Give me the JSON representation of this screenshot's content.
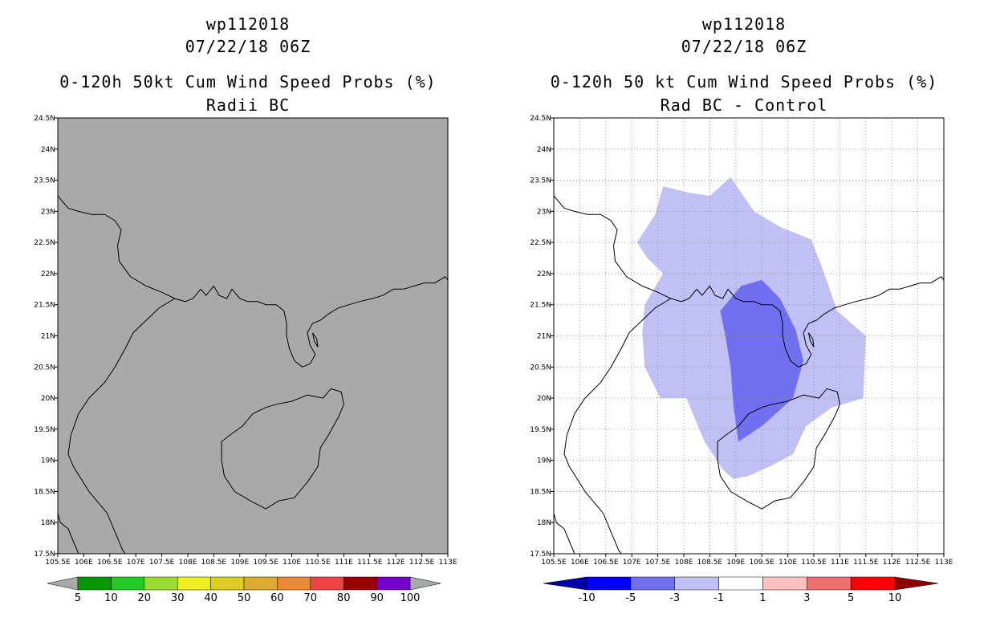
{
  "map_extent": {
    "lon_min": 105.5,
    "lon_max": 113.0,
    "lat_min": 17.5,
    "lat_max": 24.5
  },
  "lat_labels": [
    "24.5N",
    "24N",
    "23.5N",
    "23N",
    "22.5N",
    "22N",
    "21.5N",
    "21N",
    "20.5N",
    "20N",
    "19.5N",
    "19N",
    "18.5N",
    "18N",
    "17.5N"
  ],
  "lon_labels": [
    "105.5E",
    "106E",
    "106.5E",
    "107E",
    "107.5E",
    "108E",
    "108.5E",
    "109E",
    "109.5E",
    "110E",
    "110.5E",
    "111E",
    "111.5E",
    "112E",
    "112.5E",
    "113E"
  ],
  "left_panel": {
    "title_line1": "wp112018",
    "title_line2": "07/22/18 06Z",
    "title_line3": "0-120h 50kt Cum Wind Speed Probs (%)",
    "title_line4": "Radii BC",
    "background_fill": "#a9a9a9",
    "colorbar": {
      "colors": [
        "#009900",
        "#22cc22",
        "#99dd33",
        "#eeee22",
        "#ddcc22",
        "#ddaa33",
        "#ee8833",
        "#ee4444",
        "#990000",
        "#7700cc"
      ],
      "end_colors": [
        "#a9a9a9",
        "#a9a9a9"
      ],
      "labels": [
        "5",
        "10",
        "20",
        "30",
        "40",
        "50",
        "60",
        "70",
        "80",
        "90",
        "100"
      ]
    }
  },
  "right_panel": {
    "title_line1": "wp112018",
    "title_line2": "07/22/18 06Z",
    "title_line3": "0-120h 50 kt Cum Wind Speed Probs (%)",
    "title_line4": "Rad BC - Control",
    "grid": "dotted",
    "contours": [
      {
        "range": "-3 to -1",
        "color": "#c0c0f5"
      },
      {
        "range": "-5 to -3",
        "color": "#6f6fef"
      }
    ],
    "colorbar": {
      "colors": [
        "#0000aa",
        "#0000ff",
        "#6f6fef",
        "#c0c0f5",
        "#ffffff",
        "#ffc0c0",
        "#f07070",
        "#ff0000",
        "#8b0000"
      ],
      "labels": [
        "-10",
        "-5",
        "-3",
        "-1",
        "1",
        "3",
        "5",
        "10"
      ]
    }
  }
}
